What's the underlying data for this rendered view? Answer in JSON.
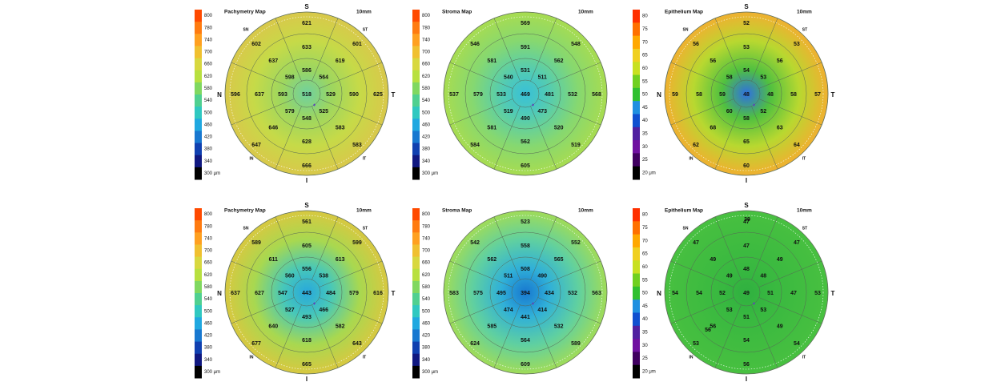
{
  "unit": "μm",
  "panels": [
    {
      "title": "Pachymetry Map",
      "size_label": "10mm",
      "scale": [
        "800",
        "780",
        "740",
        "700",
        "660",
        "620",
        "580",
        "540",
        "500",
        "460",
        "420",
        "380",
        "340",
        "300 μm"
      ],
      "scale_colors": [
        "#ff4a00",
        "#ff7b10",
        "#ffa020",
        "#f0c030",
        "#d8d840",
        "#b8e040",
        "#80d860",
        "#50d090",
        "#30c8c0",
        "#20a8e0",
        "#1878d0",
        "#1040b0",
        "#101880",
        "#000000"
      ],
      "orientation": {
        "S": "S",
        "I": "I",
        "N": "N",
        "T": "T",
        "SN": "SN",
        "ST": "ST",
        "IN": "IN",
        "IT": "IT"
      },
      "center": "518",
      "inner": [
        "586",
        "564",
        "529",
        "525",
        "548",
        "579",
        "593",
        "598"
      ],
      "middle": [
        "633",
        "619",
        "590",
        "583",
        "628",
        "646",
        "637",
        "637"
      ],
      "outer": [
        "621",
        "601",
        "625",
        "583",
        "666",
        "647",
        "596",
        "602"
      ],
      "map_colors": {
        "center": "#6fd0a0",
        "inner": "#9cd660",
        "middle": "#c6da48",
        "outer": "#d9c84a"
      }
    },
    {
      "title": "Stroma Map",
      "size_label": "10mm",
      "scale": [
        "800",
        "780",
        "740",
        "700",
        "660",
        "620",
        "580",
        "540",
        "500",
        "460",
        "420",
        "380",
        "340",
        "300 μm"
      ],
      "scale_colors": [
        "#ff4a00",
        "#ff7b10",
        "#ffa020",
        "#f0c030",
        "#d8d840",
        "#b8e040",
        "#80d860",
        "#50d090",
        "#30c8c0",
        "#20a8e0",
        "#1878d0",
        "#1040b0",
        "#101880",
        "#000000"
      ],
      "orientation": {
        "S": "",
        "I": "",
        "N": "",
        "T": "",
        "SN": "",
        "ST": "",
        "IN": "",
        "IT": ""
      },
      "center": "469",
      "inner": [
        "531",
        "511",
        "481",
        "473",
        "490",
        "519",
        "533",
        "540"
      ],
      "middle": [
        "591",
        "562",
        "532",
        "520",
        "562",
        "581",
        "579",
        "581"
      ],
      "outer": [
        "569",
        "548",
        "568",
        "519",
        "605",
        "584",
        "537",
        "546"
      ],
      "map_colors": {
        "center": "#38c0d8",
        "inner": "#55ccb0",
        "middle": "#86d870",
        "outer": "#a8dc50"
      }
    },
    {
      "title": "Epithelium Map",
      "size_label": "10mm",
      "scale": [
        "80",
        "75",
        "70",
        "65",
        "60",
        "55",
        "50",
        "45",
        "40",
        "35",
        "30",
        "25",
        "20 μm"
      ],
      "scale_colors": [
        "#ff3000",
        "#ff7000",
        "#ffa800",
        "#f0d020",
        "#c8e020",
        "#70d020",
        "#30c030",
        "#2090e0",
        "#1050d0",
        "#5020a0",
        "#7010a0",
        "#400060",
        "#000000"
      ],
      "orientation": {
        "S": "S",
        "I": "I",
        "N": "N",
        "T": "T",
        "SN": "SN",
        "ST": "ST",
        "IN": "IN",
        "IT": "IT"
      },
      "center": "48",
      "inner": [
        "54",
        "53",
        "48",
        "52",
        "58",
        "60",
        "59",
        "58"
      ],
      "middle": [
        "53",
        "56",
        "58",
        "63",
        "65",
        "68",
        "58",
        "56"
      ],
      "outer": [
        "52",
        "53",
        "57",
        "64",
        "60",
        "62",
        "59",
        "56"
      ],
      "extra": [],
      "map_colors": {
        "center": "#2f70e0",
        "inner": "#50c040",
        "middle": "#b8d830",
        "outer": "#f0b030"
      }
    },
    {
      "title": "Pachymetry Map",
      "size_label": "10mm",
      "scale": [
        "800",
        "780",
        "740",
        "700",
        "660",
        "620",
        "580",
        "540",
        "500",
        "460",
        "420",
        "380",
        "340",
        "300 μm"
      ],
      "scale_colors": [
        "#ff4a00",
        "#ff7b10",
        "#ffa020",
        "#f0c030",
        "#d8d840",
        "#b8e040",
        "#80d860",
        "#50d090",
        "#30c8c0",
        "#20a8e0",
        "#1878d0",
        "#1040b0",
        "#101880",
        "#000000"
      ],
      "orientation": {
        "S": "S",
        "I": "I",
        "N": "N",
        "T": "T",
        "SN": "SN",
        "ST": "ST",
        "IN": "IN",
        "IT": "IT"
      },
      "center": "443",
      "inner": [
        "556",
        "538",
        "484",
        "466",
        "493",
        "527",
        "547",
        "560"
      ],
      "middle": [
        "605",
        "613",
        "579",
        "582",
        "618",
        "640",
        "627",
        "611"
      ],
      "outer": [
        "561",
        "599",
        "616",
        "643",
        "665",
        "677",
        "637",
        "589"
      ],
      "map_colors": {
        "center": "#28a8dc",
        "inner": "#48c8b8",
        "middle": "#a8d850",
        "outer": "#d8c840"
      }
    },
    {
      "title": "Stroma Map",
      "size_label": "10mm",
      "scale": [
        "800",
        "780",
        "740",
        "700",
        "660",
        "620",
        "580",
        "540",
        "500",
        "460",
        "420",
        "380",
        "340",
        "300 μm"
      ],
      "scale_colors": [
        "#ff4a00",
        "#ff7b10",
        "#ffa020",
        "#f0c030",
        "#d8d840",
        "#b8e040",
        "#80d860",
        "#50d090",
        "#30c8c0",
        "#20a8e0",
        "#1878d0",
        "#1040b0",
        "#101880",
        "#000000"
      ],
      "orientation": {
        "S": "",
        "I": "",
        "N": "",
        "T": "",
        "SN": "",
        "ST": "",
        "IN": "",
        "IT": ""
      },
      "center": "394",
      "inner": [
        "508",
        "490",
        "434",
        "414",
        "441",
        "474",
        "495",
        "511"
      ],
      "middle": [
        "558",
        "565",
        "532",
        "532",
        "564",
        "585",
        "575",
        "562"
      ],
      "outer": [
        "523",
        "552",
        "563",
        "589",
        "609",
        "624",
        "583",
        "542"
      ],
      "map_colors": {
        "center": "#1878d0",
        "inner": "#30b0d8",
        "middle": "#60d0a0",
        "outer": "#a0dc58"
      }
    },
    {
      "title": "Epithelium Map",
      "size_label": "10mm",
      "scale": [
        "80",
        "75",
        "70",
        "65",
        "60",
        "55",
        "50",
        "45",
        "40",
        "35",
        "30",
        "25",
        "20 μm"
      ],
      "scale_colors": [
        "#ff3000",
        "#ff7000",
        "#ffa800",
        "#f0d020",
        "#c8e020",
        "#70d020",
        "#30c030",
        "#2090e0",
        "#1050d0",
        "#5020a0",
        "#7010a0",
        "#400060",
        "#000000"
      ],
      "orientation": {
        "S": "S",
        "I": "I",
        "N": "N",
        "T": "T",
        "SN": "SN",
        "ST": "ST",
        "IN": "IN",
        "IT": "IT"
      },
      "center": "49",
      "inner": [
        "48",
        "48",
        "51",
        "53",
        "51",
        "53",
        "52",
        "49"
      ],
      "middle": [
        "47",
        "49",
        "47",
        "49",
        "54",
        "56",
        "54",
        "49"
      ],
      "outer": [
        "47",
        "47",
        "53",
        "54",
        "56",
        "53",
        "54",
        "47"
      ],
      "extra": [
        "39",
        "56"
      ],
      "map_colors": {
        "center": "#30b040",
        "inner": "#38b840",
        "middle": "#40bc40",
        "outer": "#48c040"
      }
    }
  ]
}
